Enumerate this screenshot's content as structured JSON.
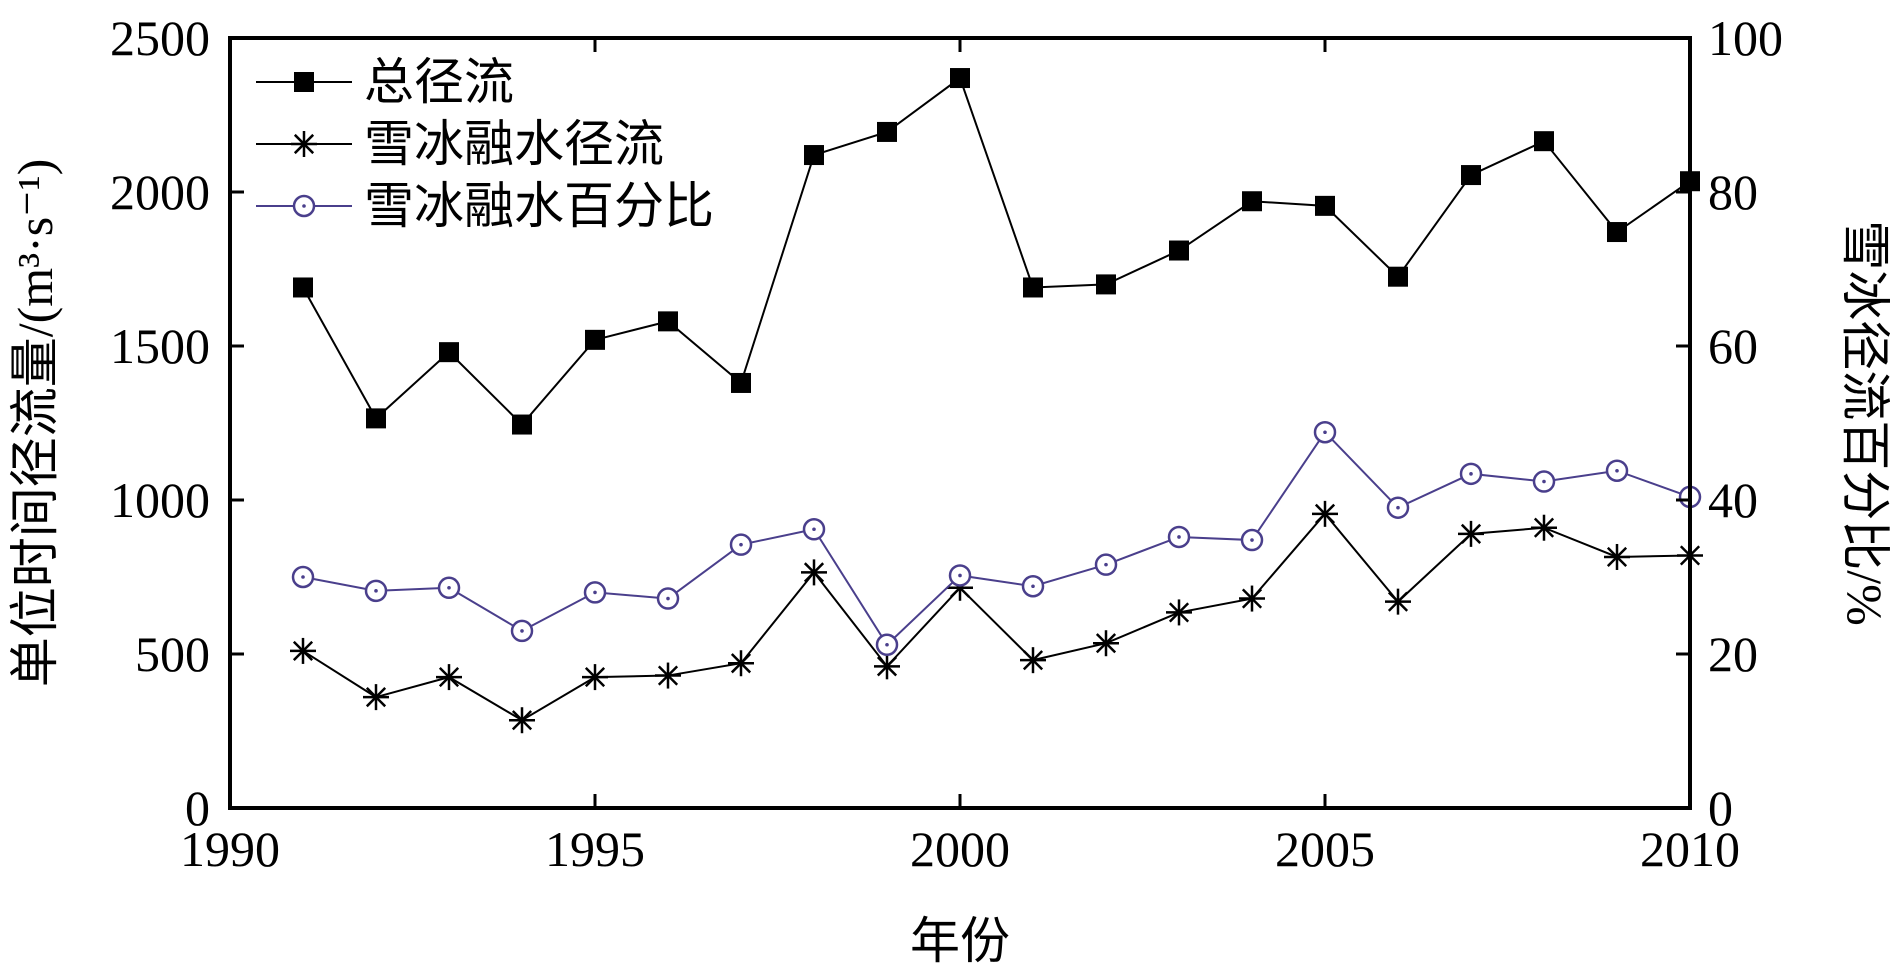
{
  "chart_data": {
    "type": "line",
    "xlabel": "年份",
    "ylabel_left": "单位时间径流量/(m³·s⁻¹)",
    "ylabel_right": "雪冰径流百分比/%",
    "xlim": [
      1990,
      2010
    ],
    "ylim_left": [
      0,
      2500
    ],
    "ylim_right": [
      0,
      100
    ],
    "x_ticks": [
      1990,
      1995,
      2000,
      2005,
      2010
    ],
    "y_ticks_left": [
      0,
      500,
      1000,
      1500,
      2000,
      2500
    ],
    "y_ticks_right": [
      0,
      20,
      40,
      60,
      80,
      100
    ],
    "grid": false,
    "legend_position": "top-left",
    "x": [
      1991,
      1992,
      1993,
      1994,
      1995,
      1996,
      1997,
      1998,
      1999,
      2000,
      2001,
      2002,
      2003,
      2004,
      2005,
      2006,
      2007,
      2008,
      2009,
      2010
    ],
    "series": [
      {
        "name": "总径流",
        "axis": "left",
        "marker": "filled-square",
        "color": "#000000",
        "values": [
          1690,
          1265,
          1480,
          1245,
          1520,
          1580,
          1380,
          2120,
          2195,
          2370,
          1690,
          1700,
          1810,
          1970,
          1955,
          1725,
          2055,
          2165,
          1870,
          2035
        ]
      },
      {
        "name": "雪冰融水径流",
        "axis": "left",
        "marker": "asterisk",
        "color": "#000000",
        "values": [
          510,
          360,
          425,
          285,
          425,
          430,
          470,
          765,
          460,
          715,
          480,
          535,
          635,
          680,
          955,
          670,
          890,
          910,
          815,
          820
        ]
      },
      {
        "name": "雪冰融水百分比",
        "axis": "right",
        "marker": "open-circle-dot",
        "color": "#4a3f8c",
        "values": [
          30,
          28.2,
          28.6,
          23,
          28,
          27.2,
          34.2,
          36.2,
          21.2,
          30.2,
          28.8,
          31.6,
          35.2,
          34.8,
          48.8,
          39,
          43.4,
          42.4,
          43.8,
          40.4
        ]
      }
    ]
  }
}
